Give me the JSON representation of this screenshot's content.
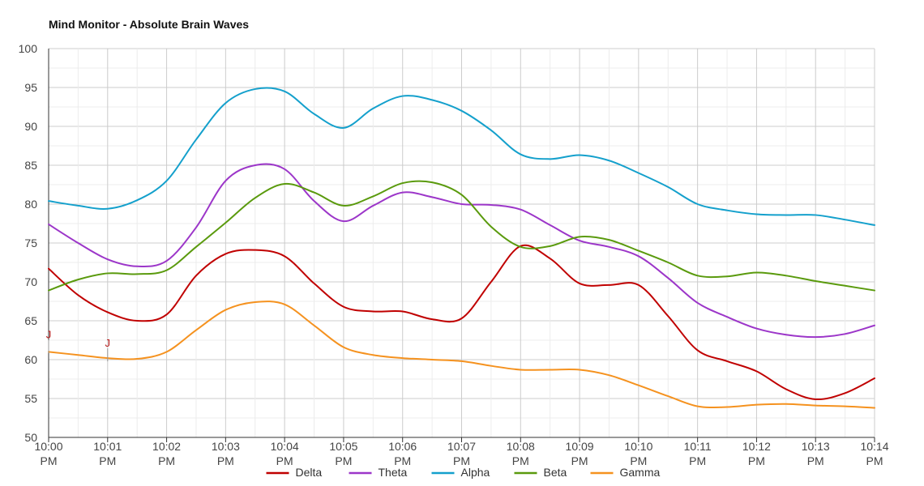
{
  "chart_data": {
    "type": "line",
    "title": "Mind Monitor -  Absolute Brain Waves",
    "xlabel": "",
    "ylabel": "",
    "ylim": [
      50,
      100
    ],
    "yticks": [
      50,
      55,
      60,
      65,
      70,
      75,
      80,
      85,
      90,
      95,
      100
    ],
    "categories": [
      "10:00 PM",
      "10:01 PM",
      "10:02 PM",
      "10:03 PM",
      "10:04 PM",
      "10:05 PM",
      "10:06 PM",
      "10:07 PM",
      "10:08 PM",
      "10:09 PM",
      "10:10 PM",
      "10:11 PM",
      "10:12 PM",
      "10:13 PM",
      "10:14 PM"
    ],
    "xtick_lines": [
      [
        "10:00",
        "PM"
      ],
      [
        "10:01",
        "PM"
      ],
      [
        "10:02",
        "PM"
      ],
      [
        "10:03",
        "PM"
      ],
      [
        "10:04",
        "PM"
      ],
      [
        "10:05",
        "PM"
      ],
      [
        "10:06",
        "PM"
      ],
      [
        "10:07",
        "PM"
      ],
      [
        "10:08",
        "PM"
      ],
      [
        "10:09",
        "PM"
      ],
      [
        "10:10",
        "PM"
      ],
      [
        "10:11",
        "PM"
      ],
      [
        "10:12",
        "PM"
      ],
      [
        "10:13",
        "PM"
      ],
      [
        "10:14",
        "PM"
      ]
    ],
    "x": [
      0,
      0.5,
      1,
      1.5,
      2,
      2.5,
      3,
      3.5,
      4,
      4.5,
      5,
      5.5,
      6,
      6.5,
      7,
      7.5,
      8,
      8.5,
      9,
      9.5,
      10,
      10.5,
      11,
      11.5,
      12,
      12.5,
      13,
      13.5,
      14
    ],
    "series": [
      {
        "name": "Delta",
        "color": "#c00000",
        "values": [
          71.7,
          68.3,
          66.1,
          65.0,
          65.8,
          70.8,
          73.6,
          74.1,
          73.3,
          69.8,
          66.8,
          66.2,
          66.2,
          65.2,
          65.3,
          70.0,
          74.6,
          73.0,
          69.8,
          69.6,
          69.6,
          65.6,
          61.2,
          59.8,
          58.5,
          56.2,
          54.9,
          55.7,
          57.6
        ]
      },
      {
        "name": "Theta",
        "color": "#9c36c9",
        "values": [
          77.4,
          75.0,
          72.9,
          72.0,
          72.7,
          77.0,
          83.0,
          85.0,
          84.5,
          80.4,
          77.8,
          79.8,
          81.5,
          80.9,
          80.0,
          79.9,
          79.3,
          77.3,
          75.3,
          74.5,
          73.3,
          70.5,
          67.3,
          65.5,
          64.0,
          63.2,
          62.9,
          63.3,
          64.4
        ]
      },
      {
        "name": "Alpha",
        "color": "#14a0cc",
        "values": [
          80.4,
          79.8,
          79.4,
          80.5,
          83.0,
          88.3,
          93.0,
          94.8,
          94.5,
          91.6,
          89.8,
          92.3,
          93.9,
          93.4,
          92.0,
          89.5,
          86.4,
          85.8,
          86.3,
          85.6,
          84.0,
          82.2,
          80.0,
          79.2,
          78.7,
          78.6,
          78.6,
          78.0,
          77.3
        ]
      },
      {
        "name": "Beta",
        "color": "#5a9a0d",
        "values": [
          68.9,
          70.3,
          71.1,
          71.0,
          71.5,
          74.5,
          77.6,
          80.8,
          82.6,
          81.5,
          79.8,
          81.0,
          82.7,
          82.8,
          81.2,
          77.1,
          74.5,
          74.6,
          75.8,
          75.4,
          74.0,
          72.5,
          70.8,
          70.7,
          71.2,
          70.8,
          70.1,
          69.5,
          68.9
        ]
      },
      {
        "name": "Gamma",
        "color": "#f5921f",
        "values": [
          61.0,
          60.6,
          60.2,
          60.1,
          61.0,
          63.8,
          66.4,
          67.4,
          67.1,
          64.4,
          61.6,
          60.6,
          60.2,
          60.0,
          59.8,
          59.2,
          58.7,
          58.7,
          58.7,
          58.0,
          56.7,
          55.3,
          54.0,
          53.9,
          54.2,
          54.3,
          54.1,
          54.0,
          53.8
        ]
      }
    ],
    "markers": [
      {
        "label": "J",
        "x": 0,
        "y": 61.5
      },
      {
        "label": "J",
        "x": 1,
        "y": 60.4
      }
    ],
    "legend_position": "bottom",
    "grid": true,
    "colors": {
      "grid_major": "#cccccc",
      "grid_minor": "#ececec",
      "axis": "#333333"
    }
  }
}
